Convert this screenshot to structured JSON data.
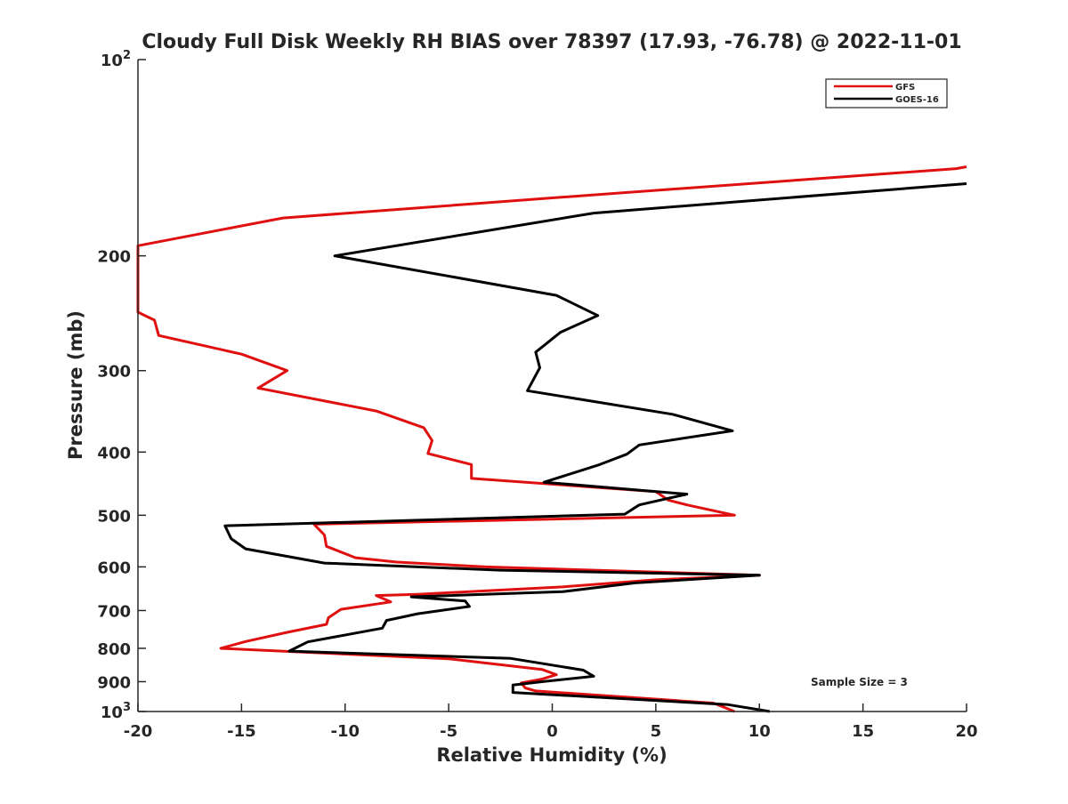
{
  "chart_data": {
    "type": "line",
    "title": "Cloudy Full Disk Weekly RH BIAS over 78397 (17.93, -76.78) @ 2022-11-01",
    "xlabel": "Relative Humidity (%)",
    "ylabel": "Pressure (mb)",
    "xlim": [
      -20,
      20
    ],
    "ylim": [
      100,
      1000
    ],
    "y_scale": "log",
    "y_reversed": true,
    "grid": false,
    "legend_position": "top-right",
    "x_ticks": [
      "-20",
      "-15",
      "-10",
      "-5",
      "0",
      "5",
      "10",
      "15",
      "20"
    ],
    "y_ticks": [
      {
        "value": 100,
        "base": "10",
        "exp": "2",
        "text": ""
      },
      {
        "value": 200,
        "base": "",
        "exp": "",
        "text": "200"
      },
      {
        "value": 300,
        "base": "",
        "exp": "",
        "text": "300"
      },
      {
        "value": 400,
        "base": "",
        "exp": "",
        "text": "400"
      },
      {
        "value": 500,
        "base": "",
        "exp": "",
        "text": "500"
      },
      {
        "value": 600,
        "base": "",
        "exp": "",
        "text": "600"
      },
      {
        "value": 700,
        "base": "",
        "exp": "",
        "text": "700"
      },
      {
        "value": 800,
        "base": "",
        "exp": "",
        "text": "800"
      },
      {
        "value": 900,
        "base": "",
        "exp": "",
        "text": "900"
      },
      {
        "value": 1000,
        "base": "10",
        "exp": "3",
        "text": ""
      }
    ],
    "annotation": "Sample Size = 3",
    "series": [
      {
        "name": "GFS",
        "color": "#e01010",
        "points": [
          [
            20,
            146
          ],
          [
            19.5,
            147
          ],
          [
            0,
            163
          ],
          [
            -13,
            175
          ],
          [
            -20,
            193
          ],
          [
            -20,
            244
          ],
          [
            -19.2,
            251
          ],
          [
            -19,
            265
          ],
          [
            -15,
            283
          ],
          [
            -12.8,
            300
          ],
          [
            -14.2,
            319
          ],
          [
            -8.5,
            346
          ],
          [
            -6.2,
            367
          ],
          [
            -5.8,
            384
          ],
          [
            -6,
            402
          ],
          [
            -3.9,
            418
          ],
          [
            -3.9,
            439
          ],
          [
            5,
            460
          ],
          [
            5.6,
            474
          ],
          [
            6.5,
            482
          ],
          [
            8.8,
            500
          ],
          [
            -11.5,
            516
          ],
          [
            -11,
            536
          ],
          [
            -10.9,
            558
          ],
          [
            -9.5,
            581
          ],
          [
            -7.5,
            590
          ],
          [
            -3.2,
            600
          ],
          [
            10,
            618
          ],
          [
            5,
            628
          ],
          [
            0.5,
            644
          ],
          [
            -6.5,
            661
          ],
          [
            -8.5,
            664
          ],
          [
            -7.8,
            679
          ],
          [
            -10.2,
            697
          ],
          [
            -10.8,
            718
          ],
          [
            -10.9,
            735
          ],
          [
            -12.8,
            756
          ],
          [
            -14.8,
            781
          ],
          [
            -16,
            800
          ],
          [
            -5,
            830
          ],
          [
            -0.5,
            862
          ],
          [
            0.2,
            878
          ],
          [
            -0.5,
            892
          ],
          [
            -1.5,
            904
          ],
          [
            -1.3,
            920
          ],
          [
            -0.8,
            930
          ],
          [
            7.8,
            971
          ],
          [
            8.8,
            1000
          ]
        ]
      },
      {
        "name": "GOES-16",
        "color": "#000000",
        "points": [
          [
            20,
            155
          ],
          [
            2,
            172
          ],
          [
            -10.5,
            200
          ],
          [
            0.2,
            230
          ],
          [
            2.2,
            247
          ],
          [
            0.4,
            262
          ],
          [
            -0.8,
            281
          ],
          [
            -0.6,
            297
          ],
          [
            -1.2,
            322
          ],
          [
            5.8,
            350
          ],
          [
            8.7,
            371
          ],
          [
            4.2,
            390
          ],
          [
            3.6,
            403
          ],
          [
            2.2,
            419
          ],
          [
            -0.4,
            445
          ],
          [
            6.5,
            464
          ],
          [
            4.2,
            482
          ],
          [
            3.5,
            498
          ],
          [
            -15.8,
            519
          ],
          [
            -15.5,
            543
          ],
          [
            -14.8,
            563
          ],
          [
            -11,
            592
          ],
          [
            -2.5,
            607
          ],
          [
            10,
            618
          ],
          [
            4,
            635
          ],
          [
            0.5,
            655
          ],
          [
            -6.8,
            667
          ],
          [
            -4.2,
            677
          ],
          [
            -4,
            690
          ],
          [
            -6.5,
            708
          ],
          [
            -8,
            725
          ],
          [
            -8.2,
            745
          ],
          [
            -11.8,
            782
          ],
          [
            -12.7,
            808
          ],
          [
            -2,
            829
          ],
          [
            1.5,
            864
          ],
          [
            2,
            883
          ],
          [
            -0.5,
            900
          ],
          [
            -1.9,
            911
          ],
          [
            -1.9,
            935
          ],
          [
            8.5,
            976
          ],
          [
            10.5,
            1000
          ]
        ]
      }
    ]
  }
}
